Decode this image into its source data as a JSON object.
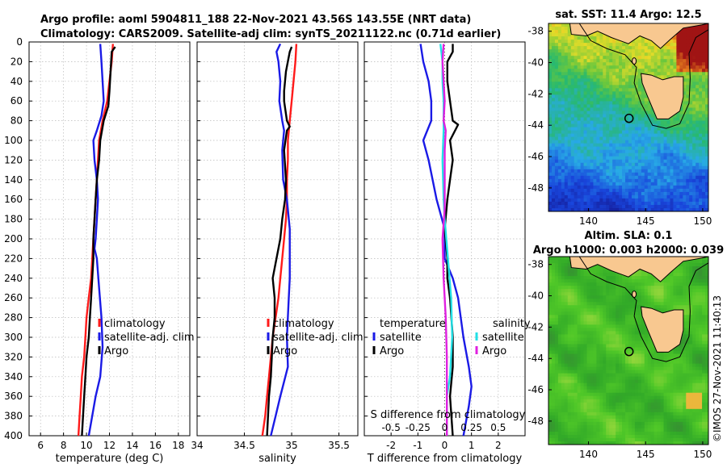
{
  "header": {
    "line1": "Argo profile: aoml 5904811_188 22-Nov-2021 43.56S 143.55E (NRT data)",
    "line2": "Climatology: CARS2009. Satellite-adj clim: synTS_20211122.nc (0.71d earlier)"
  },
  "colors": {
    "climatology": "#ff1a1a",
    "satellite": "#1a1ae6",
    "argo": "#000000",
    "sal_satellite": "#22e0e6",
    "sal_argo": "#e020e0",
    "land": "#f8c890"
  },
  "chart_data": [
    {
      "type": "line",
      "title": "",
      "xlabel": "temperature (deg C)",
      "ylabel": "",
      "xlim": [
        5,
        19
      ],
      "ylim": [
        400,
        0
      ],
      "xticks": [
        "6",
        "8",
        "10",
        "12",
        "14",
        "16",
        "18"
      ],
      "yticks": [
        "0",
        "20",
        "40",
        "60",
        "80",
        "100",
        "120",
        "140",
        "160",
        "180",
        "200",
        "220",
        "240",
        "260",
        "280",
        "300",
        "320",
        "340",
        "360",
        "380",
        "400"
      ],
      "legend": {
        "location": "bottom-right",
        "entries": [
          "climatology",
          "satellite-adj. clim",
          "Argo"
        ]
      },
      "series": [
        {
          "name": "climatology",
          "color_key": "climatology",
          "points": [
            [
              12.3,
              2
            ],
            [
              12.2,
              20
            ],
            [
              12.0,
              40
            ],
            [
              11.8,
              60
            ],
            [
              11.4,
              80
            ],
            [
              11.1,
              100
            ],
            [
              11.0,
              120
            ],
            [
              10.9,
              140
            ],
            [
              10.8,
              160
            ],
            [
              10.7,
              180
            ],
            [
              10.6,
              200
            ],
            [
              10.5,
              220
            ],
            [
              10.4,
              240
            ],
            [
              10.2,
              260
            ],
            [
              10.0,
              280
            ],
            [
              9.9,
              300
            ],
            [
              9.8,
              320
            ],
            [
              9.6,
              340
            ],
            [
              9.5,
              360
            ],
            [
              9.4,
              380
            ],
            [
              9.3,
              400
            ]
          ]
        },
        {
          "name": "satellite-adj. clim",
          "color_key": "satellite",
          "points": [
            [
              11.2,
              2
            ],
            [
              11.3,
              20
            ],
            [
              11.4,
              40
            ],
            [
              11.5,
              60
            ],
            [
              11.3,
              75
            ],
            [
              10.9,
              90
            ],
            [
              10.6,
              100
            ],
            [
              10.7,
              120
            ],
            [
              10.9,
              140
            ],
            [
              11.0,
              160
            ],
            [
              10.9,
              180
            ],
            [
              10.8,
              200
            ],
            [
              10.7,
              210
            ],
            [
              10.9,
              220
            ],
            [
              11.1,
              250
            ],
            [
              11.3,
              280
            ],
            [
              11.4,
              310
            ],
            [
              11.2,
              340
            ],
            [
              10.8,
              360
            ],
            [
              10.2,
              400
            ]
          ]
        },
        {
          "name": "Argo",
          "color_key": "argo",
          "points": [
            [
              12.5,
              5
            ],
            [
              12.2,
              10
            ],
            [
              12.1,
              30
            ],
            [
              12.0,
              50
            ],
            [
              11.9,
              65
            ],
            [
              11.5,
              80
            ],
            [
              11.2,
              100
            ],
            [
              11.1,
              120
            ],
            [
              10.9,
              140
            ],
            [
              10.8,
              160
            ],
            [
              10.7,
              180
            ],
            [
              10.6,
              200
            ],
            [
              10.6,
              220
            ],
            [
              10.5,
              240
            ],
            [
              10.4,
              260
            ],
            [
              10.3,
              280
            ],
            [
              10.2,
              300
            ],
            [
              10.0,
              320
            ],
            [
              9.9,
              340
            ],
            [
              9.8,
              360
            ],
            [
              9.7,
              380
            ],
            [
              9.6,
              400
            ]
          ]
        }
      ]
    },
    {
      "type": "line",
      "title": "",
      "xlabel": "salinity",
      "ylabel": "",
      "xlim": [
        34.0,
        35.7
      ],
      "ylim": [
        400,
        0
      ],
      "xticks": [
        "34",
        "34.5",
        "35",
        "35.5"
      ],
      "yticks": [],
      "legend": {
        "location": "bottom-right",
        "entries": [
          "climatology",
          "satellite-adj. clim",
          "Argo"
        ]
      },
      "series": [
        {
          "name": "climatology",
          "color_key": "climatology",
          "points": [
            [
              35.05,
              2
            ],
            [
              35.04,
              20
            ],
            [
              35.02,
              40
            ],
            [
              35.0,
              60
            ],
            [
              34.98,
              80
            ],
            [
              34.96,
              100
            ],
            [
              34.96,
              120
            ],
            [
              34.95,
              140
            ],
            [
              34.95,
              160
            ],
            [
              34.94,
              180
            ],
            [
              34.92,
              200
            ],
            [
              34.9,
              220
            ],
            [
              34.88,
              240
            ],
            [
              34.86,
              260
            ],
            [
              34.83,
              280
            ],
            [
              34.8,
              300
            ],
            [
              34.78,
              320
            ],
            [
              34.76,
              340
            ],
            [
              34.74,
              360
            ],
            [
              34.72,
              380
            ],
            [
              34.69,
              400
            ]
          ]
        },
        {
          "name": "satellite-adj. clim",
          "color_key": "satellite",
          "points": [
            [
              34.88,
              2
            ],
            [
              34.84,
              10
            ],
            [
              34.86,
              20
            ],
            [
              34.88,
              40
            ],
            [
              34.87,
              60
            ],
            [
              34.9,
              80
            ],
            [
              34.92,
              90
            ],
            [
              34.9,
              110
            ],
            [
              34.91,
              140
            ],
            [
              34.95,
              160
            ],
            [
              34.98,
              190
            ],
            [
              34.98,
              240
            ],
            [
              34.97,
              260
            ],
            [
              34.95,
              300
            ],
            [
              34.96,
              330
            ],
            [
              34.88,
              360
            ],
            [
              34.83,
              380
            ],
            [
              34.78,
              400
            ]
          ]
        },
        {
          "name": "Argo",
          "color_key": "argo",
          "points": [
            [
              35.0,
              5
            ],
            [
              34.98,
              10
            ],
            [
              34.94,
              30
            ],
            [
              34.92,
              50
            ],
            [
              34.92,
              60
            ],
            [
              34.95,
              80
            ],
            [
              34.98,
              86
            ],
            [
              34.95,
              90
            ],
            [
              34.92,
              110
            ],
            [
              34.94,
              140
            ],
            [
              34.93,
              160
            ],
            [
              34.9,
              180
            ],
            [
              34.88,
              200
            ],
            [
              34.84,
              220
            ],
            [
              34.8,
              240
            ],
            [
              34.82,
              260
            ],
            [
              34.82,
              280
            ],
            [
              34.8,
              300
            ],
            [
              34.79,
              320
            ],
            [
              34.78,
              340
            ],
            [
              34.76,
              360
            ],
            [
              34.75,
              380
            ],
            [
              34.74,
              400
            ]
          ]
        }
      ]
    },
    {
      "type": "line",
      "title": "",
      "xlabel": "T difference from climatology",
      "top_xlabel": "S difference from climatology",
      "ylabel": "",
      "xlim": [
        -3,
        3
      ],
      "s_xlim": [
        -0.75,
        0.75
      ],
      "ylim": [
        400,
        0
      ],
      "xticks": [
        "-2",
        "-1",
        "0",
        "1",
        "2"
      ],
      "s_xticks": [
        "-0.5",
        "-0.25",
        "0",
        "0.25",
        "0.5"
      ],
      "yticks": [],
      "legend": {
        "location": "bottom",
        "temperature_header": "temperature",
        "salinity_header": "salinity",
        "entries": [
          "satellite",
          "Argo",
          "satellite",
          "Argo"
        ]
      },
      "series": [
        {
          "name": "T satellite",
          "color_key": "satellite",
          "points": [
            [
              -0.9,
              2
            ],
            [
              -0.8,
              20
            ],
            [
              -0.6,
              40
            ],
            [
              -0.5,
              60
            ],
            [
              -0.5,
              80
            ],
            [
              -0.8,
              100
            ],
            [
              -0.6,
              120
            ],
            [
              -0.3,
              160
            ],
            [
              0.0,
              190
            ],
            [
              0.0,
              220
            ],
            [
              0.3,
              240
            ],
            [
              0.5,
              260
            ],
            [
              0.6,
              280
            ],
            [
              0.7,
              300
            ],
            [
              0.9,
              330
            ],
            [
              1.0,
              350
            ],
            [
              0.9,
              370
            ],
            [
              0.7,
              400
            ]
          ]
        },
        {
          "name": "T Argo",
          "color_key": "argo",
          "points": [
            [
              0.3,
              2
            ],
            [
              0.3,
              10
            ],
            [
              0.1,
              20
            ],
            [
              0.1,
              40
            ],
            [
              0.2,
              60
            ],
            [
              0.3,
              80
            ],
            [
              0.5,
              84
            ],
            [
              0.2,
              100
            ],
            [
              0.3,
              120
            ],
            [
              0.2,
              140
            ],
            [
              0.1,
              160
            ],
            [
              0.0,
              190
            ],
            [
              0.1,
              220
            ],
            [
              0.1,
              240
            ],
            [
              0.2,
              260
            ],
            [
              0.3,
              300
            ],
            [
              0.3,
              330
            ],
            [
              0.2,
              360
            ],
            [
              0.3,
              400
            ]
          ]
        },
        {
          "name": "S satellite",
          "color_key": "sal_satellite",
          "points": [
            [
              -0.04,
              2
            ],
            [
              -0.02,
              20
            ],
            [
              -0.02,
              40
            ],
            [
              -0.01,
              60
            ],
            [
              -0.01,
              90
            ],
            [
              -0.02,
              120
            ],
            [
              -0.01,
              160
            ],
            [
              0.0,
              180
            ],
            [
              0.03,
              220
            ],
            [
              0.06,
              260
            ],
            [
              0.07,
              300
            ],
            [
              0.05,
              340
            ],
            [
              0.02,
              360
            ],
            [
              0.02,
              400
            ]
          ]
        },
        {
          "name": "S Argo",
          "color_key": "sal_argo",
          "points": [
            [
              -0.01,
              2
            ],
            [
              -0.02,
              20
            ],
            [
              -0.01,
              40
            ],
            [
              0.0,
              60
            ],
            [
              -0.01,
              80
            ],
            [
              0.01,
              90
            ],
            [
              0.0,
              110
            ],
            [
              0.0,
              140
            ],
            [
              0.0,
              170
            ],
            [
              -0.02,
              200
            ],
            [
              -0.01,
              240
            ],
            [
              0.01,
              280
            ],
            [
              0.02,
              320
            ],
            [
              0.02,
              360
            ],
            [
              0.02,
              400
            ]
          ]
        }
      ]
    },
    {
      "type": "heatmap",
      "title": "sat. SST: 11.4 Argo: 12.5",
      "xlabel": "",
      "ylabel": "",
      "xlim": [
        136.5,
        150.5
      ],
      "ylim": [
        -49.5,
        -37.5
      ],
      "xticks": [
        "140",
        "145",
        "150"
      ],
      "yticks": [
        "-38",
        "-40",
        "-42",
        "-44",
        "-46",
        "-48"
      ],
      "marker": {
        "lon": 143.55,
        "lat": -43.56
      }
    },
    {
      "type": "heatmap",
      "title": "Altim. SLA: 0.1",
      "subtitle": "Argo h1000: 0.003 h2000: 0.039",
      "xlabel": "",
      "ylabel": "",
      "xlim": [
        136.5,
        150.5
      ],
      "ylim": [
        -49.5,
        -37.5
      ],
      "xticks": [
        "140",
        "145",
        "150"
      ],
      "yticks": [
        "-38",
        "-40",
        "-42",
        "-44",
        "-46",
        "-48"
      ],
      "marker": {
        "lon": 143.55,
        "lat": -43.56
      }
    }
  ],
  "watermark": "©IMOS 27-Nov-2021 11:40:13"
}
